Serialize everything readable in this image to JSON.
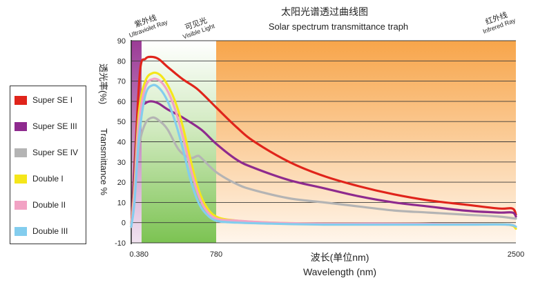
{
  "chart_data": {
    "type": "line",
    "title": "太阳光谱透过曲线图",
    "subtitle": "Solar spectrum transmittance traph",
    "xlabel_cn": "波长(单位nm)",
    "xlabel_en": "Wavelength (nm)",
    "ylabel_cn": "透光率(%)",
    "ylabel_en": "Transmittance %",
    "ylim": [
      -10,
      90
    ],
    "y_ticks": [
      "-10",
      "0",
      "10",
      "20",
      "30",
      "40",
      "50",
      "60",
      "70",
      "80",
      "90"
    ],
    "x_ticks": [
      "0.380",
      "780",
      "2500"
    ],
    "bands": [
      {
        "name_cn": "紫外线",
        "name_en": "Ultraviolet Ray",
        "color": "#9b3b96"
      },
      {
        "name_cn": "可见光",
        "name_en": "Visible Light",
        "color": "#6cbf45"
      },
      {
        "name_cn": "红外线",
        "name_en": "Infrered Ray",
        "color": "#f7a54a"
      }
    ],
    "x_domain": [
      300,
      2500
    ],
    "series": [
      {
        "name": "Super SE I",
        "color": "#e0241b",
        "points": [
          [
            300,
            -2
          ],
          [
            335,
            40
          ],
          [
            370,
            76
          ],
          [
            400,
            81
          ],
          [
            430,
            82
          ],
          [
            470,
            81
          ],
          [
            520,
            77
          ],
          [
            600,
            71
          ],
          [
            680,
            66
          ],
          [
            780,
            57
          ],
          [
            900,
            47
          ],
          [
            1000,
            40
          ],
          [
            1200,
            30
          ],
          [
            1400,
            23
          ],
          [
            1600,
            18
          ],
          [
            1800,
            14
          ],
          [
            2000,
            11
          ],
          [
            2200,
            9
          ],
          [
            2400,
            7
          ],
          [
            2480,
            7
          ],
          [
            2500,
            4
          ]
        ]
      },
      {
        "name": "Super SE III",
        "color": "#8e2a8e",
        "points": [
          [
            300,
            -2
          ],
          [
            330,
            30
          ],
          [
            360,
            55
          ],
          [
            400,
            59
          ],
          [
            430,
            60
          ],
          [
            470,
            59
          ],
          [
            520,
            56
          ],
          [
            600,
            52
          ],
          [
            700,
            46
          ],
          [
            780,
            39
          ],
          [
            900,
            31
          ],
          [
            1000,
            27
          ],
          [
            1200,
            21
          ],
          [
            1400,
            17
          ],
          [
            1600,
            13
          ],
          [
            1800,
            10
          ],
          [
            2000,
            8
          ],
          [
            2200,
            6
          ],
          [
            2400,
            5
          ],
          [
            2480,
            5
          ],
          [
            2500,
            3
          ]
        ]
      },
      {
        "name": "Super SE IV",
        "color": "#b4b4b4",
        "points": [
          [
            300,
            -2
          ],
          [
            330,
            20
          ],
          [
            360,
            38
          ],
          [
            400,
            49
          ],
          [
            440,
            52
          ],
          [
            480,
            50
          ],
          [
            520,
            46
          ],
          [
            580,
            36
          ],
          [
            640,
            32
          ],
          [
            680,
            33
          ],
          [
            700,
            32
          ],
          [
            780,
            25
          ],
          [
            900,
            19
          ],
          [
            1000,
            16
          ],
          [
            1200,
            12
          ],
          [
            1400,
            10
          ],
          [
            1600,
            8
          ],
          [
            1800,
            6
          ],
          [
            2000,
            5
          ],
          [
            2200,
            4
          ],
          [
            2400,
            3
          ],
          [
            2500,
            2
          ]
        ]
      },
      {
        "name": "Double I",
        "color": "#f5e61a",
        "points": [
          [
            300,
            -2
          ],
          [
            325,
            18
          ],
          [
            360,
            55
          ],
          [
            400,
            70
          ],
          [
            440,
            74
          ],
          [
            480,
            73
          ],
          [
            520,
            68
          ],
          [
            560,
            60
          ],
          [
            600,
            48
          ],
          [
            640,
            32
          ],
          [
            680,
            18
          ],
          [
            720,
            9
          ],
          [
            780,
            3
          ],
          [
            900,
            1
          ],
          [
            1100,
            0
          ],
          [
            1400,
            -0.5
          ],
          [
            1800,
            -0.5
          ],
          [
            2200,
            -0.8
          ],
          [
            2450,
            -1
          ],
          [
            2500,
            -3
          ]
        ]
      },
      {
        "name": "Double II",
        "color": "#f2a2c4",
        "points": [
          [
            300,
            -2
          ],
          [
            325,
            15
          ],
          [
            360,
            50
          ],
          [
            400,
            67
          ],
          [
            440,
            71
          ],
          [
            480,
            70
          ],
          [
            520,
            65
          ],
          [
            560,
            56
          ],
          [
            600,
            43
          ],
          [
            640,
            28
          ],
          [
            680,
            15
          ],
          [
            720,
            7
          ],
          [
            780,
            2
          ],
          [
            900,
            1
          ],
          [
            1100,
            0
          ],
          [
            1400,
            -0.5
          ],
          [
            1800,
            -0.5
          ],
          [
            2200,
            -0.8
          ],
          [
            2450,
            -1
          ],
          [
            2500,
            -2
          ]
        ]
      },
      {
        "name": "Double III",
        "color": "#83cdee",
        "points": [
          [
            300,
            -2
          ],
          [
            325,
            10
          ],
          [
            360,
            42
          ],
          [
            400,
            63
          ],
          [
            440,
            68
          ],
          [
            480,
            66
          ],
          [
            520,
            60
          ],
          [
            560,
            50
          ],
          [
            600,
            37
          ],
          [
            640,
            22
          ],
          [
            680,
            11
          ],
          [
            720,
            5
          ],
          [
            780,
            1
          ],
          [
            900,
            0
          ],
          [
            1100,
            -0.5
          ],
          [
            1400,
            -1
          ],
          [
            1800,
            -1
          ],
          [
            2200,
            -1
          ],
          [
            2450,
            -1
          ],
          [
            2500,
            -2
          ]
        ]
      }
    ]
  }
}
